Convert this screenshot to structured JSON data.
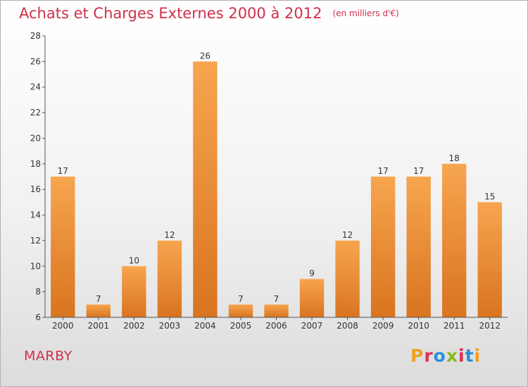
{
  "header": {
    "title": "Achats et Charges Externes 2000 à 2012",
    "unit": "(en milliers d'€)"
  },
  "footer": {
    "town": "MARBY",
    "logo": "Proxiti"
  },
  "colors": {
    "title": "#d0304a",
    "bar_light": "#f7a54f",
    "bar_dark": "#d9741f",
    "axis": "#555555",
    "gridline": "#e2e2e2",
    "logo_letters": [
      "#f0a020",
      "#e03050",
      "#2a8fd8",
      "#8ab820",
      "#e03050",
      "#2a8fd8",
      "#f0a020"
    ]
  },
  "chart_data": {
    "type": "bar",
    "title": "Achats et Charges Externes 2000 à 2012",
    "subtitle": "(en milliers d'€)",
    "categories": [
      "2000",
      "2001",
      "2002",
      "2003",
      "2004",
      "2005",
      "2006",
      "2007",
      "2008",
      "2009",
      "2010",
      "2011",
      "2012"
    ],
    "values": [
      17,
      7,
      10,
      12,
      26,
      7,
      7,
      9,
      12,
      17,
      17,
      18,
      15
    ],
    "ylim": [
      6,
      28
    ],
    "yticks": [
      6,
      8,
      10,
      12,
      14,
      16,
      18,
      20,
      22,
      24,
      26,
      28
    ],
    "grid": true,
    "legend": "none"
  }
}
